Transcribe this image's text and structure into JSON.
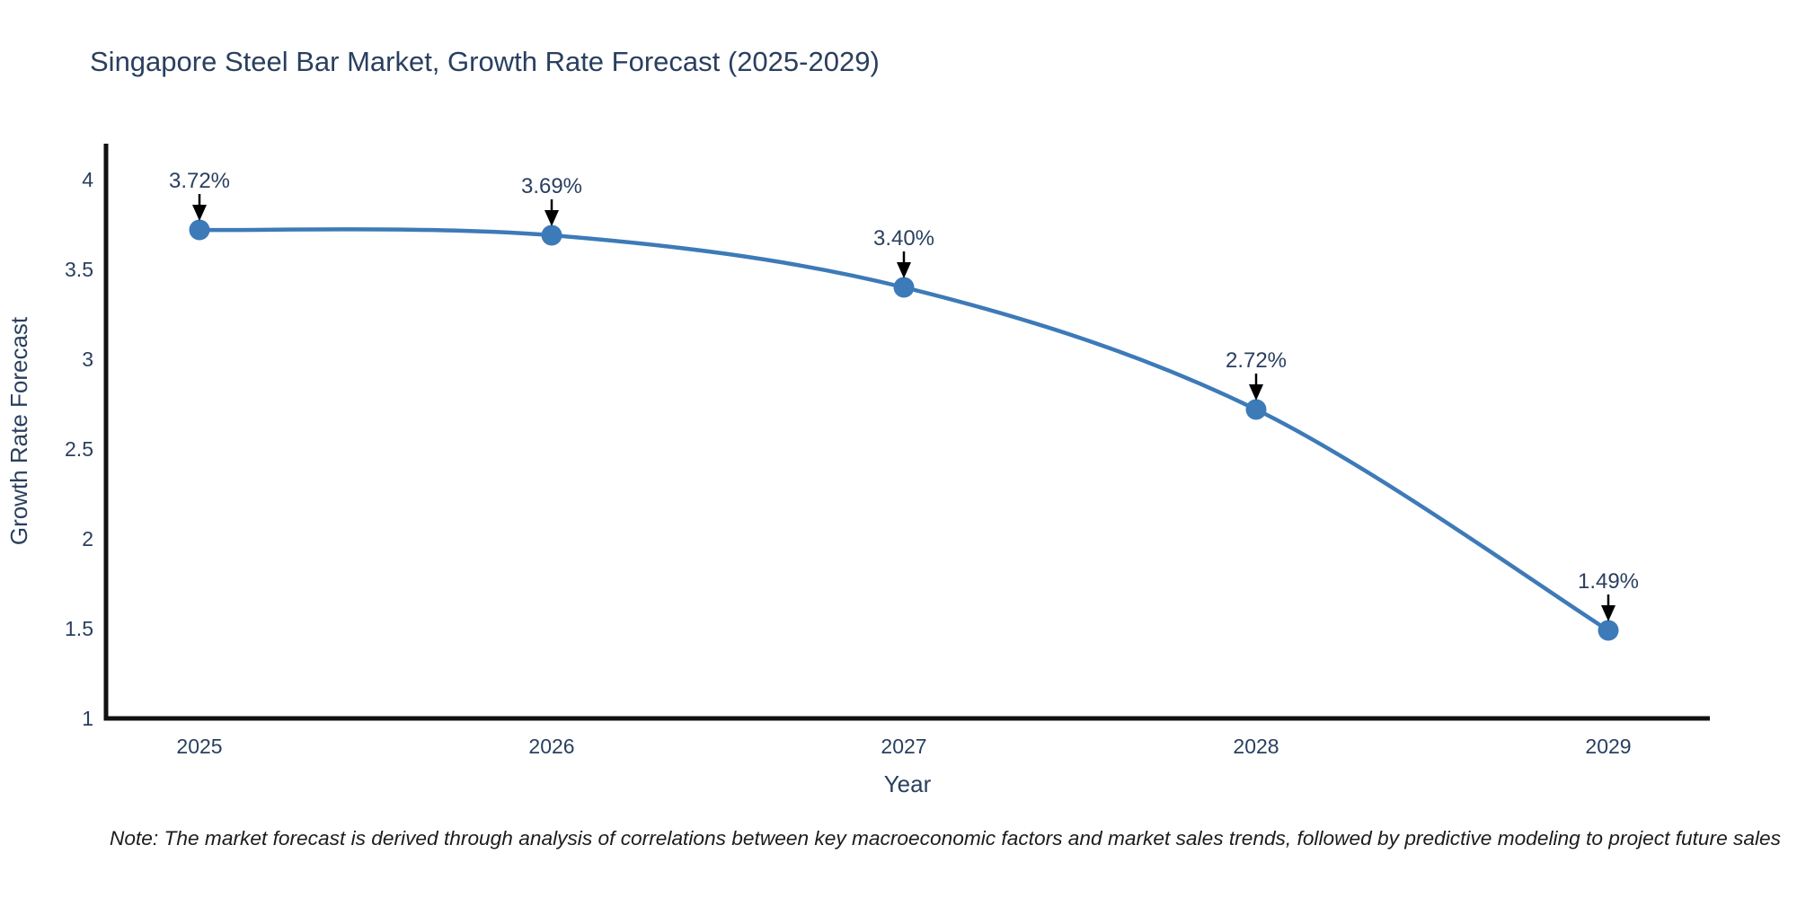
{
  "page": {
    "background_color": "#ffffff"
  },
  "chart_data": {
    "type": "line",
    "title": "Singapore Steel Bar Market, Growth Rate Forecast (2025-2029)",
    "xlabel": "Year",
    "ylabel": "Growth Rate Forecast",
    "x": [
      2025,
      2026,
      2027,
      2028,
      2029
    ],
    "series": [
      {
        "name": "Growth Rate Forecast",
        "values": [
          3.72,
          3.69,
          3.4,
          2.72,
          1.49
        ],
        "point_labels": [
          "3.72%",
          "3.69%",
          "3.40%",
          "2.72%",
          "1.49%"
        ]
      }
    ],
    "yticks": [
      1,
      1.5,
      2,
      2.5,
      3,
      3.5,
      4
    ],
    "ylim": [
      1,
      4.2
    ],
    "grid": false,
    "legend_position": "none",
    "line_shape": "spline",
    "annotations_have_arrows": true,
    "colors": {
      "line": "#3d7ab8",
      "marker": "#3d7ab8",
      "axis": "#111111",
      "tick_text": "#2a3f5f",
      "title_text": "#2a3f5f",
      "annotation_text": "#2a3f5f",
      "arrow": "#000000",
      "note_text": "#1c1c1c"
    }
  },
  "footnote": "Note: The market forecast is derived through analysis of correlations between key macroeconomic factors and market sales trends, followed by predictive modeling to project future sales"
}
